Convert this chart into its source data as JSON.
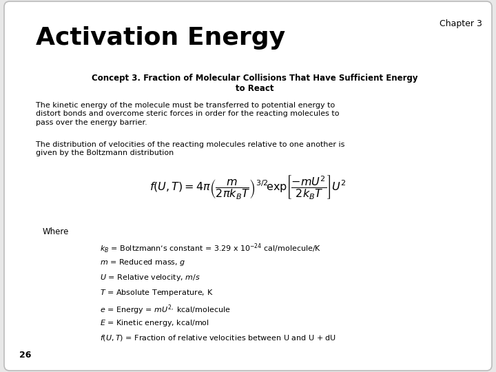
{
  "background_color": "#e8e8e8",
  "slide_background": "#ffffff",
  "chapter_text": "Chapter 3",
  "title_text": "Activation Energy",
  "concept_title": "Concept 3. Fraction of Molecular Collisions That Have Sufficient Energy\nto React",
  "paragraph1": "The kinetic energy of the molecule must be transferred to potential energy to\ndistort bonds and overcome steric forces in order for the reacting molecules to\npass over the energy barrier.",
  "paragraph2": "The distribution of velocities of the reacting molecules relative to one another is\ngiven by the Boltzmann distribution",
  "where_label": "Where",
  "definitions": [
    "$k_B$ = Boltzmann’s constant = 3.29 x 10$^{-24}$ cal/molecule/K",
    "$m$ = Reduced mass, $g$",
    "$U$ = Relative velocity, $m/s$",
    "$T$ = Absolute Temperature, K",
    "$e$ = Energy = $mU^{2,}$ kcal/molecule",
    "$E$ = Kinetic energy, kcal/mol",
    "$f(U, T)$ = Fraction of relative velocities between U and U + dU"
  ],
  "page_number": "26",
  "formula": "$f(U,T)=4\\pi\\left(\\dfrac{m}{2\\pi k_BT}\\right)^{3/2}\\!\\exp\\!\\left[\\dfrac{-mU^2}{2k_BT}\\right]U^2$"
}
